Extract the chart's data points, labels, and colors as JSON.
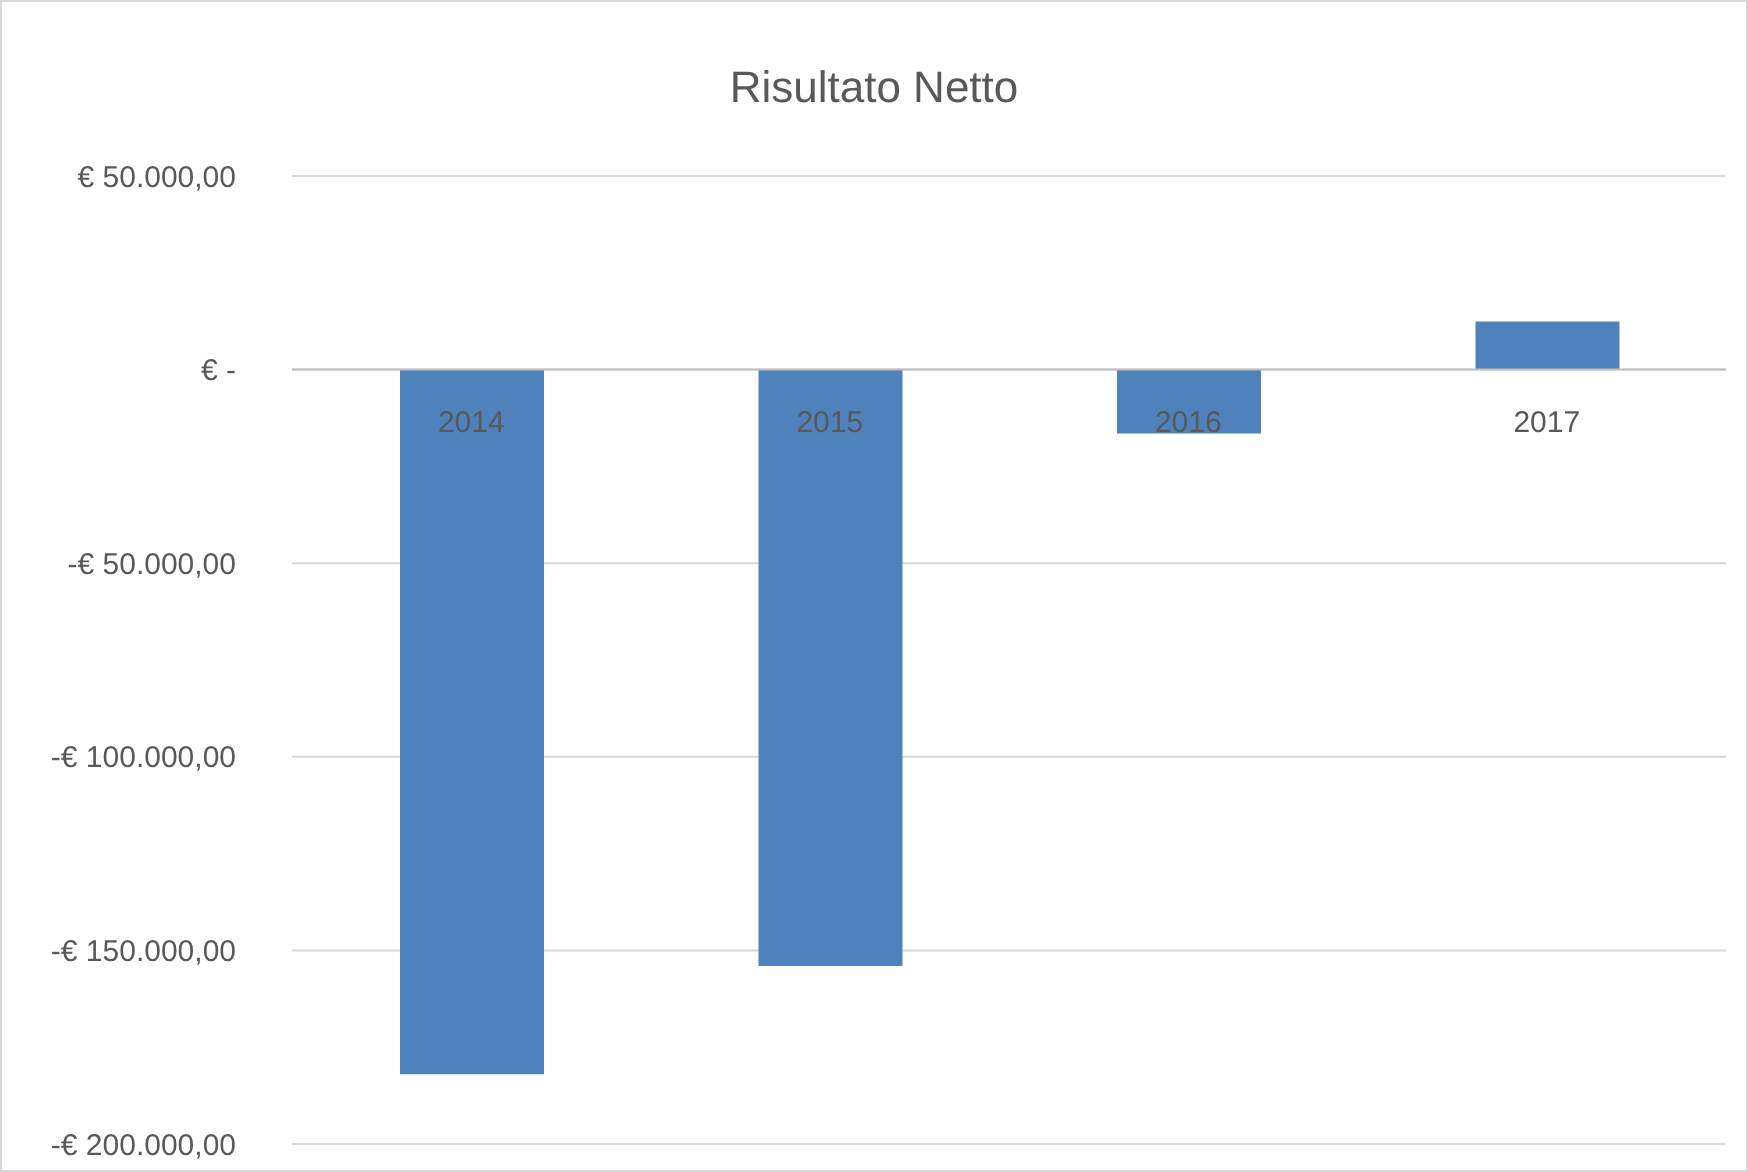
{
  "chart_data": {
    "type": "bar",
    "title": "Risultato Netto",
    "categories": [
      "2014",
      "2015",
      "2016",
      "2017"
    ],
    "values": [
      -182000,
      -154000,
      -16500,
      12400
    ],
    "color": "#4f81bd",
    "ylim": [
      -200000,
      50000
    ],
    "yticks": [
      {
        "value": 50000,
        "label": "€ 50.000,00"
      },
      {
        "value": 0,
        "label": "€ -"
      },
      {
        "value": -50000,
        "label": "-€ 50.000,00"
      },
      {
        "value": -100000,
        "label": "-€ 100.000,00"
      },
      {
        "value": -150000,
        "label": "-€ 150.000,00"
      },
      {
        "value": -200000,
        "label": "-€ 200.000,00"
      }
    ],
    "grid": "y"
  }
}
